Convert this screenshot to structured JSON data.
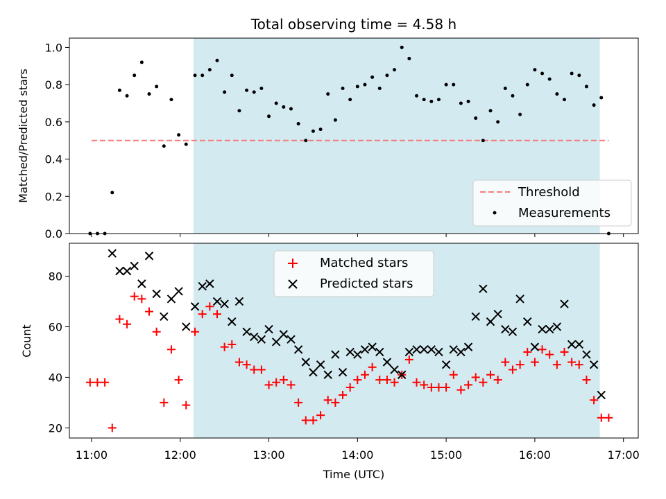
{
  "chart_data": [
    {
      "type": "scatter",
      "title": "Total observing time = 4.58 h",
      "ylabel": "Matched/Predicted stars",
      "ylim": [
        0,
        1.05
      ],
      "yticks": [
        "0.0",
        "0.2",
        "0.4",
        "0.6",
        "0.8",
        "1.0"
      ],
      "shaded_interval": [
        "12:09",
        "16:44"
      ],
      "shade_color": "#d4eaf1",
      "legend_position": "lower right",
      "series": [
        {
          "name": "Threshold",
          "kind": "dashed-line",
          "color": "#f47c7c",
          "x": [
            "11:00",
            "16:50"
          ],
          "y": [
            0.5,
            0.5
          ]
        },
        {
          "name": "Measurements",
          "kind": "points",
          "color": "#000000",
          "x": [
            "10:59",
            "11:04",
            "11:09",
            "11:14",
            "11:19",
            "11:24",
            "11:29",
            "11:34",
            "11:39",
            "11:44",
            "11:49",
            "11:54",
            "11:59",
            "12:04",
            "12:10",
            "12:15",
            "12:20",
            "12:25",
            "12:30",
            "12:35",
            "12:40",
            "12:45",
            "12:50",
            "12:55",
            "13:00",
            "13:05",
            "13:10",
            "13:15",
            "13:20",
            "13:25",
            "13:30",
            "13:35",
            "13:40",
            "13:45",
            "13:50",
            "13:55",
            "14:00",
            "14:05",
            "14:10",
            "14:15",
            "14:20",
            "14:25",
            "14:30",
            "14:35",
            "14:40",
            "14:45",
            "14:50",
            "14:55",
            "15:00",
            "15:05",
            "15:10",
            "15:15",
            "15:20",
            "15:25",
            "15:30",
            "15:35",
            "15:40",
            "15:45",
            "15:50",
            "15:55",
            "16:00",
            "16:05",
            "16:10",
            "16:15",
            "16:20",
            "16:25",
            "16:30",
            "16:35",
            "16:40",
            "16:45",
            "16:50"
          ],
          "y": [
            0.0,
            0.0,
            0.0,
            0.22,
            0.77,
            0.74,
            0.85,
            0.92,
            0.75,
            0.79,
            0.47,
            0.72,
            0.53,
            0.48,
            0.85,
            0.85,
            0.88,
            0.93,
            0.76,
            0.85,
            0.66,
            0.77,
            0.76,
            0.78,
            0.63,
            0.7,
            0.68,
            0.67,
            0.59,
            0.5,
            0.55,
            0.56,
            0.75,
            0.61,
            0.78,
            0.72,
            0.79,
            0.8,
            0.84,
            0.78,
            0.85,
            0.88,
            1.0,
            0.94,
            0.74,
            0.72,
            0.71,
            0.72,
            0.8,
            0.8,
            0.7,
            0.71,
            0.62,
            0.5,
            0.66,
            0.6,
            0.78,
            0.74,
            0.64,
            0.8,
            0.88,
            0.86,
            0.83,
            0.75,
            0.72,
            0.86,
            0.85,
            0.79,
            0.69,
            0.73,
            0.0
          ]
        }
      ]
    },
    {
      "type": "scatter",
      "xlabel": "Time (UTC)",
      "ylabel": "Count",
      "ylim": [
        16,
        93
      ],
      "yticks": [
        "20",
        "40",
        "60",
        "80"
      ],
      "xticks": [
        "11:00",
        "12:00",
        "13:00",
        "14:00",
        "15:00",
        "16:00",
        "17:00"
      ],
      "xlim": [
        "10:45",
        "17:10"
      ],
      "shaded_interval": [
        "12:09",
        "16:44"
      ],
      "shade_color": "#d4eaf1",
      "legend_position": "top center",
      "series": [
        {
          "name": "Matched stars",
          "marker": "+",
          "color": "#ff0000",
          "x": [
            "10:59",
            "11:04",
            "11:09",
            "11:14",
            "11:19",
            "11:24",
            "11:29",
            "11:34",
            "11:39",
            "11:44",
            "11:49",
            "11:54",
            "11:59",
            "12:04",
            "12:10",
            "12:15",
            "12:20",
            "12:25",
            "12:30",
            "12:35",
            "12:40",
            "12:45",
            "12:50",
            "12:55",
            "13:00",
            "13:05",
            "13:10",
            "13:15",
            "13:20",
            "13:25",
            "13:30",
            "13:35",
            "13:40",
            "13:45",
            "13:50",
            "13:55",
            "14:00",
            "14:05",
            "14:10",
            "14:15",
            "14:20",
            "14:25",
            "14:30",
            "14:35",
            "14:40",
            "14:45",
            "14:50",
            "14:55",
            "15:00",
            "15:05",
            "15:10",
            "15:15",
            "15:20",
            "15:25",
            "15:30",
            "15:35",
            "15:40",
            "15:45",
            "15:50",
            "15:55",
            "16:00",
            "16:05",
            "16:10",
            "16:15",
            "16:20",
            "16:25",
            "16:30",
            "16:35",
            "16:40",
            "16:45",
            "16:50"
          ],
          "y": [
            38,
            38,
            38,
            20,
            63,
            61,
            72,
            71,
            66,
            58,
            30,
            51,
            39,
            29,
            58,
            65,
            68,
            65,
            52,
            53,
            46,
            45,
            43,
            43,
            37,
            38,
            39,
            37,
            30,
            23,
            23,
            25,
            31,
            30,
            33,
            36,
            39,
            41,
            44,
            39,
            39,
            38,
            41,
            47,
            38,
            37,
            36,
            36,
            36,
            41,
            35,
            37,
            40,
            38,
            41,
            39,
            46,
            43,
            45,
            50,
            46,
            51,
            49,
            45,
            50,
            46,
            45,
            39,
            31,
            24,
            24
          ]
        },
        {
          "name": "Predicted stars",
          "marker": "x",
          "color": "#000000",
          "x": [
            "11:14",
            "11:19",
            "11:24",
            "11:29",
            "11:34",
            "11:39",
            "11:44",
            "11:49",
            "11:54",
            "11:59",
            "12:04",
            "12:10",
            "12:15",
            "12:20",
            "12:25",
            "12:30",
            "12:35",
            "12:40",
            "12:45",
            "12:50",
            "12:55",
            "13:00",
            "13:05",
            "13:10",
            "13:15",
            "13:20",
            "13:25",
            "13:30",
            "13:35",
            "13:40",
            "13:45",
            "13:50",
            "13:55",
            "14:00",
            "14:05",
            "14:10",
            "14:15",
            "14:20",
            "14:25",
            "14:30",
            "14:35",
            "14:40",
            "14:45",
            "14:50",
            "14:55",
            "15:00",
            "15:05",
            "15:10",
            "15:15",
            "15:20",
            "15:25",
            "15:30",
            "15:35",
            "15:40",
            "15:45",
            "15:50",
            "15:55",
            "16:00",
            "16:05",
            "16:10",
            "16:15",
            "16:20",
            "16:25",
            "16:30",
            "16:35",
            "16:40",
            "16:45"
          ],
          "y": [
            89,
            82,
            82,
            84,
            77,
            88,
            73,
            64,
            71,
            74,
            60,
            68,
            76,
            77,
            70,
            69,
            62,
            70,
            58,
            56,
            55,
            59,
            54,
            57,
            55,
            51,
            46,
            42,
            45,
            41,
            49,
            42,
            50,
            49,
            51,
            52,
            50,
            46,
            43,
            41,
            50,
            51,
            51,
            51,
            50,
            45,
            51,
            50,
            52,
            64,
            75,
            62,
            65,
            59,
            58,
            71,
            62,
            52,
            59,
            59,
            60,
            69,
            53,
            53,
            49,
            45,
            33
          ]
        }
      ]
    }
  ]
}
